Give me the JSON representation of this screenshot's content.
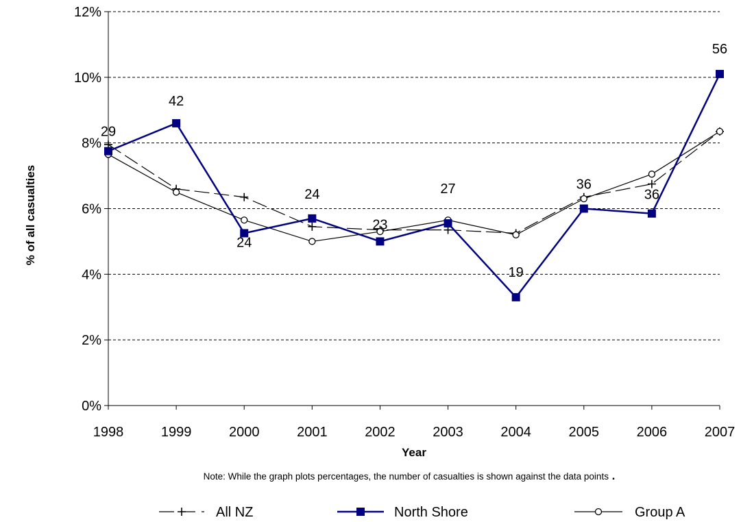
{
  "chart_data": {
    "type": "line",
    "categories": [
      "1998",
      "1999",
      "2000",
      "2001",
      "2002",
      "2003",
      "2004",
      "2005",
      "2006",
      "2007"
    ],
    "xlabel": "Year",
    "ylabel": "% of all casualties",
    "ylim": [
      0,
      12
    ],
    "yticks": [
      0,
      2,
      4,
      6,
      8,
      10,
      12
    ],
    "ytick_labels": [
      "0%",
      "2%",
      "4%",
      "6%",
      "8%",
      "10%",
      "12%"
    ],
    "grid": "horizontal dashed",
    "legend_position": "bottom",
    "note": "Note: While the graph plots percentages, the number of casualties is shown against the data points",
    "series": [
      {
        "name": "All NZ",
        "values": [
          7.95,
          6.6,
          6.35,
          5.45,
          5.35,
          5.35,
          5.25,
          6.35,
          6.75,
          8.35
        ],
        "color": "#000000",
        "marker": "plus",
        "dash": "long-dash"
      },
      {
        "name": "North Shore",
        "values": [
          7.75,
          8.6,
          5.25,
          5.7,
          5.0,
          5.55,
          3.3,
          6.0,
          5.85,
          10.1
        ],
        "color": "#000080",
        "marker": "square",
        "dash": "solid",
        "data_labels": [
          "29",
          "42",
          "24",
          "24",
          "23",
          "27",
          "19",
          "36",
          "36",
          "56"
        ]
      },
      {
        "name": "Group A",
        "values": [
          7.65,
          6.5,
          5.65,
          5.0,
          5.3,
          5.65,
          5.2,
          6.3,
          7.05,
          8.35
        ],
        "color": "#000000",
        "marker": "circle",
        "dash": "solid"
      }
    ]
  }
}
